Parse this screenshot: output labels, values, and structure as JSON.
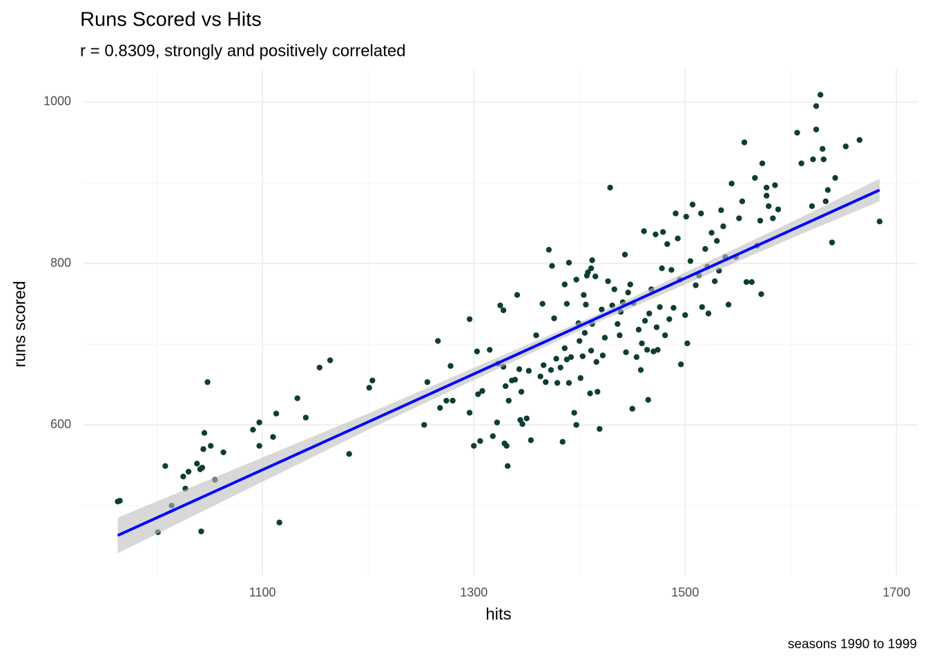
{
  "chart_data": {
    "type": "scatter",
    "title": "Runs Scored vs Hits",
    "subtitle": "r = 0.8309, strongly and positively correlated",
    "xlabel": "hits",
    "ylabel": "runs scored",
    "caption": "seasons 1990 to 1999",
    "color": "#0e3d36",
    "xlim": [
      930,
      1720
    ],
    "ylim": [
      413,
      1041
    ],
    "xticks": [
      1100,
      1300,
      1500,
      1700
    ],
    "yticks": [
      600,
      800,
      1000
    ],
    "xminor": [
      1000,
      1200,
      1400,
      1600
    ],
    "yminor": [
      500,
      700,
      900
    ],
    "grid": true,
    "trend": {
      "color": "#0000ff",
      "x": [
        963,
        1684
      ],
      "y": [
        463,
        891
      ]
    },
    "band": {
      "color": "#bebebe",
      "x": [
        963,
        1200,
        1410,
        1600,
        1684
      ],
      "lower": [
        441,
        594,
        723,
        831,
        877
      ],
      "upper": [
        485,
        614,
        733,
        851,
        905
      ]
    },
    "x": [
      963,
      965,
      1001,
      1008,
      1014,
      1025,
      1030,
      1027,
      1038,
      1041,
      1042,
      1044,
      1045,
      1043,
      1048,
      1051,
      1055,
      1063,
      1091,
      1097,
      1097,
      1110,
      1113,
      1116,
      1133,
      1141,
      1154,
      1164,
      1182,
      1201,
      1204,
      1253,
      1256,
      1266,
      1268,
      1274,
      1278,
      1280,
      1296,
      1296,
      1300,
      1303,
      1304,
      1306,
      1308,
      1315,
      1318,
      1322,
      1323,
      1325,
      1328,
      1328,
      1329,
      1330,
      1331,
      1332,
      1333,
      1336,
      1339,
      1341,
      1343,
      1344,
      1345,
      1346,
      1350,
      1352,
      1354,
      1359,
      1363,
      1365,
      1366,
      1368,
      1371,
      1373,
      1374,
      1376,
      1378,
      1379,
      1382,
      1384,
      1386,
      1386,
      1388,
      1388,
      1390,
      1390,
      1392,
      1395,
      1397,
      1397,
      1399,
      1401,
      1400,
      1403,
      1404,
      1405,
      1406,
      1407,
      1408,
      1410,
      1411,
      1411,
      1412,
      1412,
      1415,
      1416,
      1417,
      1419,
      1421,
      1422,
      1424,
      1427,
      1429,
      1431,
      1433,
      1436,
      1438,
      1439,
      1441,
      1443,
      1444,
      1446,
      1448,
      1450,
      1451,
      1454,
      1456,
      1458,
      1459,
      1461,
      1462,
      1464,
      1465,
      1466,
      1468,
      1470,
      1472,
      1473,
      1474,
      1476,
      1478,
      1479,
      1481,
      1483,
      1485,
      1487,
      1489,
      1491,
      1493,
      1495,
      1496,
      1500,
      1501,
      1502,
      1505,
      1507,
      1510,
      1513,
      1515,
      1516,
      1519,
      1521,
      1522,
      1525,
      1528,
      1530,
      1532,
      1534,
      1536,
      1538,
      1541,
      1544,
      1548,
      1551,
      1554,
      1556,
      1558,
      1563,
      1566,
      1568,
      1571,
      1572,
      1573,
      1577,
      1577,
      1579,
      1583,
      1585,
      1588,
      1606,
      1610,
      1620,
      1621,
      1624,
      1624,
      1628,
      1631,
      1633,
      1635,
      1639,
      1642,
      1652,
      1665,
      1684,
      1630
    ],
    "y": [
      505,
      506,
      467,
      549,
      500,
      536,
      542,
      521,
      552,
      545,
      468,
      570,
      590,
      547,
      653,
      574,
      532,
      566,
      594,
      603,
      574,
      585,
      614,
      479,
      633,
      609,
      671,
      680,
      564,
      646,
      655,
      600,
      653,
      704,
      621,
      630,
      673,
      630,
      615,
      731,
      574,
      691,
      638,
      580,
      642,
      693,
      586,
      603,
      676,
      748,
      742,
      672,
      577,
      648,
      574,
      549,
      630,
      655,
      656,
      761,
      669,
      606,
      641,
      601,
      608,
      667,
      581,
      711,
      660,
      750,
      674,
      653,
      817,
      668,
      797,
      732,
      682,
      652,
      671,
      579,
      695,
      774,
      681,
      750,
      801,
      652,
      684,
      615,
      780,
      600,
      726,
      658,
      704,
      685,
      761,
      714,
      749,
      785,
      789,
      639,
      692,
      794,
      804,
      725,
      784,
      678,
      641,
      595,
      743,
      686,
      708,
      778,
      894,
      748,
      768,
      725,
      711,
      740,
      752,
      811,
      690,
      764,
      774,
      620,
      751,
      684,
      718,
      668,
      701,
      840,
      729,
      693,
      631,
      738,
      768,
      691,
      836,
      721,
      693,
      746,
      794,
      839,
      711,
      824,
      731,
      792,
      745,
      862,
      831,
      780,
      675,
      736,
      858,
      701,
      803,
      873,
      773,
      785,
      862,
      746,
      818,
      796,
      738,
      838,
      778,
      828,
      791,
      866,
      846,
      808,
      749,
      899,
      808,
      856,
      877,
      950,
      777,
      777,
      906,
      822,
      853,
      762,
      924,
      894,
      884,
      871,
      856,
      897,
      867,
      962,
      924,
      871,
      929,
      966,
      995,
      1009,
      929,
      877,
      891,
      826,
      906,
      945,
      953,
      852,
      942
    ]
  }
}
